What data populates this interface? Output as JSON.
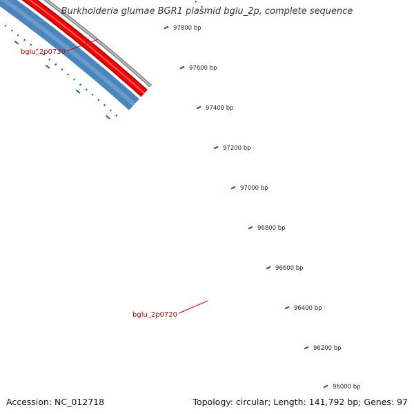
{
  "title": "Burkholderia glumae BGR1 plasmid bglu_2p, complete sequence",
  "footer": {
    "accession": "Accession: NC_012718",
    "summary": "Topology: circular; Length: 141,792 bp; Genes: 97"
  },
  "genes": [
    {
      "name": "bglu_2p0730",
      "color": "#5b4b9c"
    },
    {
      "name": "bglu_2p0720",
      "color": "#4a86bd"
    }
  ],
  "tracks": {
    "forward_color": "#ff0000",
    "backbone_color": "#888888",
    "tick_color": "#1a7a1a",
    "label_line_color": "#dd0000"
  },
  "ticks": [
    "97800 bp",
    "97600 bp",
    "97400 bp",
    "97200 bp",
    "97000 bp",
    "96800 bp",
    "96600 bp",
    "96400 bp",
    "96200 bp",
    "96000 bp"
  ]
}
